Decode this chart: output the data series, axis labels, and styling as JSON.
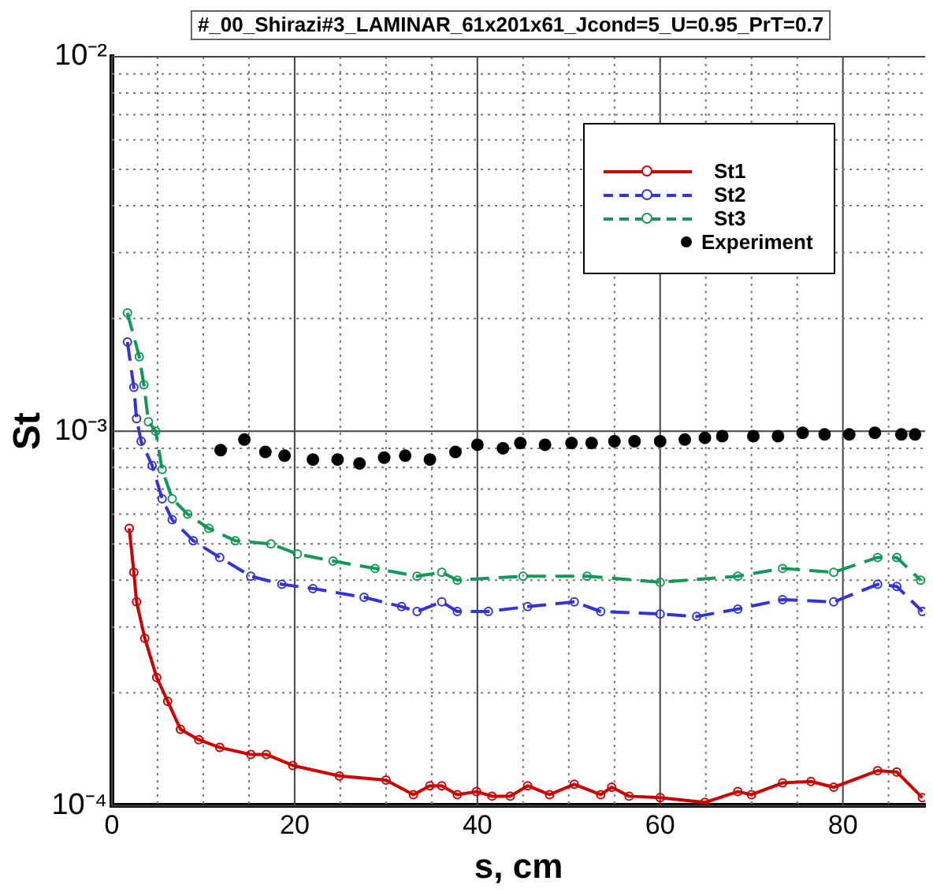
{
  "chart_data": {
    "type": "line",
    "title": "#_00_Shirazi#3_LAMINAR_61x201x61_Jcond=5_U=0.95_PrT=0.7",
    "xlabel": "s, cm",
    "ylabel": "St",
    "log": "y",
    "grid": true,
    "legend": "top right",
    "marker": "circle",
    "xlim": [
      0,
      89
    ],
    "ylim": [
      0.0001,
      0.01
    ],
    "xticks": [
      0,
      {
        "value": 5,
        "label": null
      },
      {
        "value": 10,
        "label": null
      },
      {
        "value": 15,
        "label": null
      },
      20,
      {
        "value": 25,
        "label": null
      },
      {
        "value": 30,
        "label": null
      },
      {
        "value": 35,
        "label": null
      },
      40,
      {
        "value": 45,
        "label": null
      },
      {
        "value": 50,
        "label": null
      },
      {
        "value": 55,
        "label": null
      },
      60,
      {
        "value": 65,
        "label": null
      },
      {
        "value": 70,
        "label": null
      },
      {
        "value": 75,
        "label": null
      },
      80,
      {
        "value": 85,
        "label": null
      }
    ],
    "yticks": [
      {
        "value": 0.0001,
        "label": "10⁻⁴"
      },
      {
        "value": 0.0002,
        "label": null
      },
      {
        "value": 0.0003,
        "label": null
      },
      {
        "value": 0.0004,
        "label": null
      },
      {
        "value": 0.0005,
        "label": null
      },
      {
        "value": 0.0006,
        "label": null
      },
      {
        "value": 0.0007,
        "label": null
      },
      {
        "value": 0.0008,
        "label": null
      },
      {
        "value": 0.0009,
        "label": null
      },
      {
        "value": 0.001,
        "label": "10⁻³"
      },
      {
        "value": 0.002,
        "label": null
      },
      {
        "value": 0.003,
        "label": null
      },
      {
        "value": 0.004,
        "label": null
      },
      {
        "value": 0.005,
        "label": null
      },
      {
        "value": 0.006,
        "label": null
      },
      {
        "value": 0.007,
        "label": null
      },
      {
        "value": 0.008,
        "label": null
      },
      {
        "value": 0.009,
        "label": null
      },
      {
        "value": 0.01,
        "label": "10⁻²"
      }
    ],
    "series": [
      {
        "name": "St1",
        "color": "#cc0000",
        "line_style": "solid",
        "x": [
          1.9,
          2.4,
          2.7,
          3.6,
          4.9,
          6.1,
          7.5,
          9.5,
          11.8,
          15.2,
          16.9,
          19.8,
          24.9,
          30,
          33,
          34.8,
          36.1,
          37.8,
          39.9,
          41.6,
          43.6,
          45.5,
          47.9,
          50.6,
          53.5,
          54.7,
          56.6,
          60,
          64.9,
          68.5,
          70,
          73.4,
          76.5,
          79,
          83.8,
          85.9,
          88.7
        ],
        "values": [
          0.00055,
          0.00042,
          0.00035,
          0.00028,
          0.00022,
          0.00019,
          0.00016,
          0.00015,
          0.000143,
          0.000137,
          0.000137,
          0.000128,
          0.00012,
          0.000117,
          0.000107,
          0.000113,
          0.000113,
          0.000107,
          0.000109,
          0.000106,
          0.000106,
          0.000113,
          0.000107,
          0.000114,
          0.000107,
          0.000112,
          0.000106,
          0.000105,
          0.000102,
          0.000109,
          0.000107,
          0.000115,
          0.000116,
          0.000112,
          0.000124,
          0.000123,
          0.000105
        ]
      },
      {
        "name": "St2",
        "color": "#3333dd",
        "line_style": "dashed",
        "x": [
          1.7,
          2.4,
          2.7,
          3.2,
          4.4,
          5.5,
          6.6,
          8.9,
          11.8,
          15.2,
          18.6,
          22,
          27.6,
          31.7,
          33.4,
          36.1,
          37.8,
          41.2,
          45.5,
          50.6,
          53.5,
          60,
          64,
          68.5,
          73.4,
          79,
          83.8,
          85.9,
          88.7
        ],
        "values": [
          0.00173,
          0.00131,
          0.00108,
          0.00094,
          0.00081,
          0.00066,
          0.00058,
          0.00051,
          0.00046,
          0.00041,
          0.00039,
          0.00038,
          0.00036,
          0.00034,
          0.00033,
          0.00035,
          0.00033,
          0.00033,
          0.00034,
          0.00035,
          0.00033,
          0.000325,
          0.00032,
          0.000335,
          0.000355,
          0.00035,
          0.00039,
          0.000385,
          0.00033
        ]
      },
      {
        "name": "St3",
        "color": "#119955",
        "line_style": "dashed",
        "x": [
          1.7,
          3,
          3.5,
          4,
          4.8,
          5.5,
          6.6,
          8.3,
          10.6,
          13.5,
          17.4,
          20.3,
          24.2,
          28.8,
          33.4,
          36.1,
          37.8,
          45,
          52,
          60,
          68.5,
          73.4,
          79,
          83.8,
          85.9,
          88.5
        ],
        "values": [
          0.00207,
          0.00158,
          0.00133,
          0.00106,
          0.001,
          0.00079,
          0.00066,
          0.0006,
          0.00055,
          0.00051,
          0.0005,
          0.00047,
          0.00045,
          0.00043,
          0.00041,
          0.00042,
          0.0004,
          0.00041,
          0.00041,
          0.000395,
          0.00041,
          0.00043,
          0.00042,
          0.00046,
          0.00046,
          0.0004
        ]
      },
      {
        "name": "Experiment",
        "type": "scatter",
        "color": "#000000",
        "x": [
          11.9,
          14.5,
          16.8,
          18.9,
          22,
          24.7,
          27.1,
          29.8,
          32.1,
          34.8,
          37.6,
          40,
          42.8,
          44.7,
          47.4,
          50.3,
          52.5,
          55,
          57.2,
          60,
          62.7,
          64.9,
          66.8,
          70.2,
          72.9,
          75.6,
          78,
          80.7,
          83.5,
          86.4,
          87.9
        ],
        "values": [
          0.00089,
          0.00095,
          0.00088,
          0.00086,
          0.00084,
          0.00084,
          0.00082,
          0.00085,
          0.00086,
          0.00084,
          0.00088,
          0.00092,
          0.0009,
          0.00093,
          0.00092,
          0.00093,
          0.00093,
          0.00094,
          0.00094,
          0.00094,
          0.00095,
          0.00096,
          0.00097,
          0.00097,
          0.00097,
          0.00099,
          0.00098,
          0.00098,
          0.00099,
          0.00098,
          0.00098
        ]
      }
    ]
  }
}
